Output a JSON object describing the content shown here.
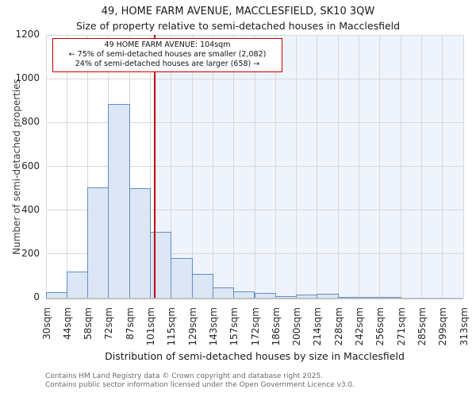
{
  "title": "49, HOME FARM AVENUE, MACCLESFIELD, SK10 3QW",
  "subtitle": "Size of property relative to semi-detached houses in Macclesfield",
  "annotation": {
    "line1": "49 HOME FARM AVENUE: 104sqm",
    "line2": "← 75% of semi-detached houses are smaller (2,082)",
    "line3": "24% of semi-detached houses are larger (658) →"
  },
  "footer": {
    "line1": "Contains HM Land Registry data © Crown copyright and database right 2025.",
    "line2": "Contains public sector information licensed under the Open Government Licence v3.0."
  },
  "chart_data": {
    "type": "bar",
    "title": "49, HOME FARM AVENUE, MACCLESFIELD, SK10 3QW",
    "subtitle": "Size of property relative to semi-detached houses in Macclesfield",
    "xlabel": "Distribution of semi-detached houses by size in Macclesfield",
    "ylabel": "Number of semi-detached properties",
    "bin_edges_sqm": [
      30,
      44,
      58,
      72,
      87,
      101,
      115,
      129,
      143,
      157,
      172,
      186,
      200,
      214,
      228,
      242,
      256,
      271,
      285,
      299,
      313
    ],
    "x_tick_labels": [
      "30sqm",
      "44sqm",
      "58sqm",
      "72sqm",
      "87sqm",
      "101sqm",
      "115sqm",
      "129sqm",
      "143sqm",
      "157sqm",
      "172sqm",
      "186sqm",
      "200sqm",
      "214sqm",
      "228sqm",
      "242sqm",
      "256sqm",
      "271sqm",
      "285sqm",
      "299sqm",
      "313sqm"
    ],
    "values": [
      25,
      120,
      505,
      885,
      500,
      300,
      180,
      110,
      48,
      30,
      20,
      7,
      13,
      17,
      2,
      2,
      2,
      0,
      0,
      0
    ],
    "y_ticks": [
      0,
      200,
      400,
      600,
      800,
      1000,
      1200
    ],
    "ylim": [
      0,
      1200
    ],
    "grid": true,
    "legend": "none",
    "marker": {
      "value_sqm": 104,
      "smaller_pct": 75,
      "smaller_count": 2082,
      "larger_pct": 24,
      "larger_count": 658
    },
    "colors": {
      "bar_fill": "#dce6f5",
      "bar_border": "#5f8fc9",
      "marker_line": "#c00000",
      "shade_right_of_marker": "#eff3fc",
      "gridline": "#d8d8d8",
      "axis_spine": "#bfbfbf"
    }
  }
}
